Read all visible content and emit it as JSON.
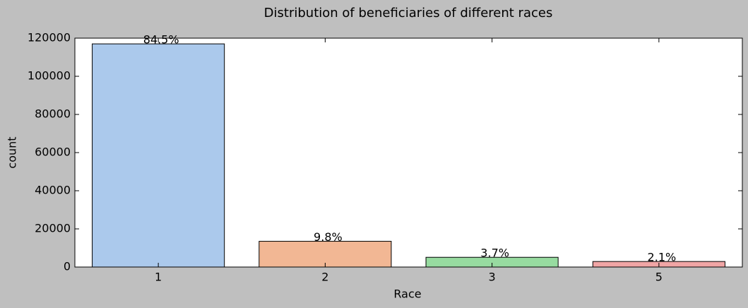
{
  "chart_data": {
    "type": "bar",
    "title": "Distribution of beneficiaries of different races",
    "xlabel": "Race",
    "ylabel": "count",
    "categories": [
      "1",
      "2",
      "3",
      "5"
    ],
    "values": [
      117000,
      13500,
      5100,
      2900
    ],
    "annotations": [
      "84.5%",
      "9.8%",
      "3.7%",
      "2.1%"
    ],
    "colors": [
      "#abc9ec",
      "#f2b794",
      "#97dba0",
      "#f0a5a5"
    ],
    "ylim": [
      0,
      120000
    ],
    "yticks": [
      0,
      20000,
      40000,
      60000,
      80000,
      100000,
      120000
    ]
  }
}
